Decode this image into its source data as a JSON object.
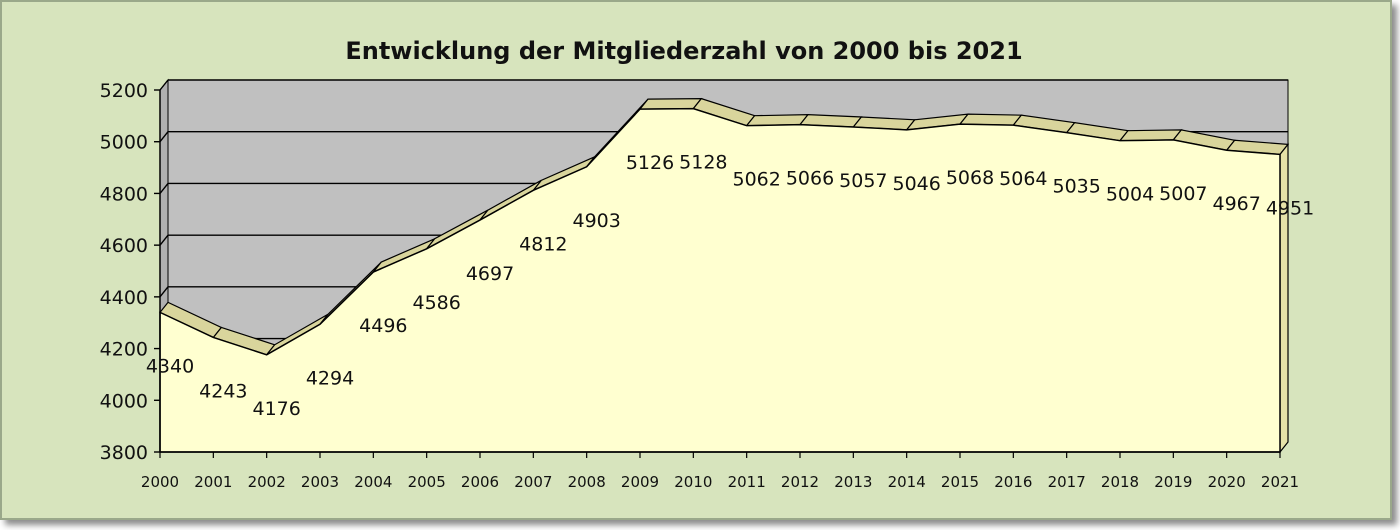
{
  "chart_data": {
    "type": "area",
    "title": "Entwicklung der Mitgliederzahl von 2000 bis 2021",
    "xlabel": "",
    "ylabel": "",
    "x": [
      "2000",
      "2001",
      "2002",
      "2003",
      "2004",
      "2005",
      "2006",
      "2007",
      "2008",
      "2009",
      "2010",
      "2011",
      "2012",
      "2013",
      "2014",
      "2015",
      "2016",
      "2017",
      "2018",
      "2019",
      "2020",
      "2021"
    ],
    "values": [
      4340,
      4243,
      4176,
      4294,
      4496,
      4586,
      4697,
      4812,
      4903,
      5126,
      5128,
      5062,
      5066,
      5057,
      5046,
      5068,
      5064,
      5035,
      5004,
      5007,
      4967,
      4951
    ],
    "ylim": [
      3800,
      5200
    ],
    "yticks": [
      "3800",
      "4000",
      "4200",
      "4400",
      "4600",
      "4800",
      "5000",
      "5200"
    ],
    "grid": true,
    "legend": "none",
    "colors": {
      "background": "#d7e4bd",
      "plot_wall": "#c0c0c0",
      "area_fill": "#ffffd0",
      "area_top_edge": "#d9d59c"
    }
  }
}
